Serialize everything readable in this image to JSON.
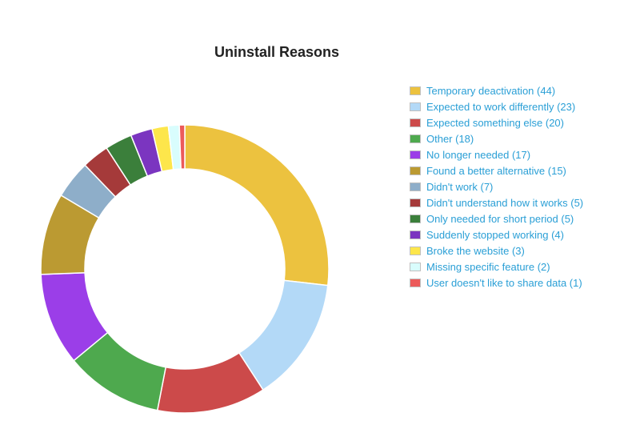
{
  "chart_data": {
    "type": "pie",
    "title": "Uninstall Reasons",
    "donut": true,
    "legend_position": "right",
    "series": [
      {
        "label": "Temporary deactivation (44)",
        "value": 44,
        "color": "#ecc23f"
      },
      {
        "label": "Expected to work differently (23)",
        "value": 23,
        "color": "#b3d9f7"
      },
      {
        "label": "Expected something else (20)",
        "value": 20,
        "color": "#cc4a4a"
      },
      {
        "label": "Other (18)",
        "value": 18,
        "color": "#4ea94e"
      },
      {
        "label": "No longer needed (17)",
        "value": 17,
        "color": "#9b3ee8"
      },
      {
        "label": "Found a better alternative (15)",
        "value": 15,
        "color": "#bb9a32"
      },
      {
        "label": "Didn't work (7)",
        "value": 7,
        "color": "#8eaec9"
      },
      {
        "label": "Didn't understand how it works (5)",
        "value": 5,
        "color": "#a53a3a"
      },
      {
        "label": "Only needed for short period (5)",
        "value": 5,
        "color": "#3b7f3b"
      },
      {
        "label": "Suddenly stopped working (4)",
        "value": 4,
        "color": "#7b35c0"
      },
      {
        "label": "Broke the website (3)",
        "value": 3,
        "color": "#fde64b"
      },
      {
        "label": "Missing specific feature (2)",
        "value": 2,
        "color": "#d9fdfd"
      },
      {
        "label": "User doesn't like to share data (1)",
        "value": 1,
        "color": "#ec5a5a"
      }
    ]
  }
}
